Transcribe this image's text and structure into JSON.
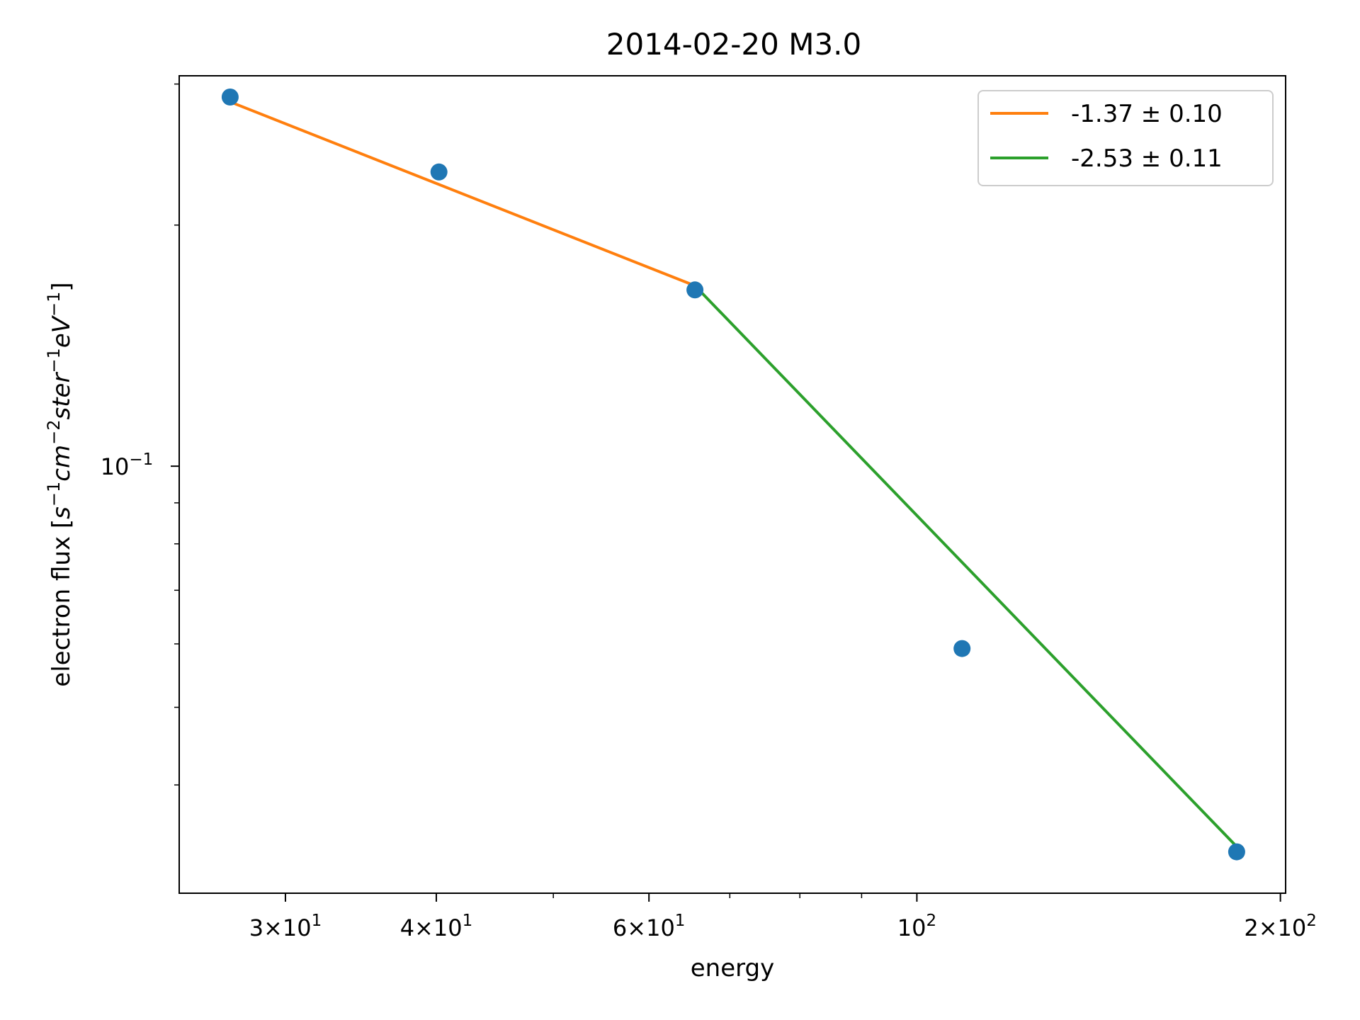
{
  "chart_data": {
    "type": "scatter",
    "title": "2014-02-20 M3.0",
    "xlabel": "energy",
    "ylabel": {
      "prefix": "electron flux [",
      "s": "s",
      "s_exp": "−1",
      "cm": "cm",
      "cm_exp": "−2",
      "ster": "ster",
      "ster_exp": "−1",
      "eV": "eV",
      "eV_exp": "−1",
      "suffix": "]"
    },
    "x_scale": "log",
    "y_scale": "log",
    "xlim": [
      24.5,
      202
    ],
    "ylim": [
      0.0293,
      0.3072
    ],
    "grid": false,
    "legend_position": "top-right",
    "x_tick_labels": [
      {
        "value": 30,
        "mantissa": "3",
        "base": "10",
        "exp": "1"
      },
      {
        "value": 40,
        "mantissa": "4",
        "base": "10",
        "exp": "1"
      },
      {
        "value": 60,
        "mantissa": "6",
        "base": "10",
        "exp": "1"
      },
      {
        "value": 100,
        "mantissa": "",
        "base": "10",
        "exp": "2"
      },
      {
        "value": 200,
        "mantissa": "2",
        "base": "10",
        "exp": "2"
      }
    ],
    "x_minor_ticks": [
      50,
      70,
      80,
      90
    ],
    "y_tick_labels": [
      {
        "value": 0.1,
        "base": "10",
        "exp": "−1"
      }
    ],
    "y_minor_ticks": [
      0.04,
      0.05,
      0.06,
      0.07,
      0.08,
      0.09,
      0.2,
      0.3
    ],
    "points": {
      "color": "#1f77b4",
      "x": [
        27,
        40.2,
        65.5,
        109,
        184
      ],
      "y": [
        0.289,
        0.233,
        0.166,
        0.0592,
        0.033
      ]
    },
    "series": [
      {
        "name": "-1.37 ± 0.10",
        "color": "#ff7f0e",
        "x": [
          27,
          65.5
        ],
        "y": [
          0.285,
          0.168
        ]
      },
      {
        "name": "-2.53 ± 0.11",
        "color": "#2ca02c",
        "x": [
          65.5,
          184
        ],
        "y": [
          0.168,
          0.0335
        ]
      }
    ]
  }
}
